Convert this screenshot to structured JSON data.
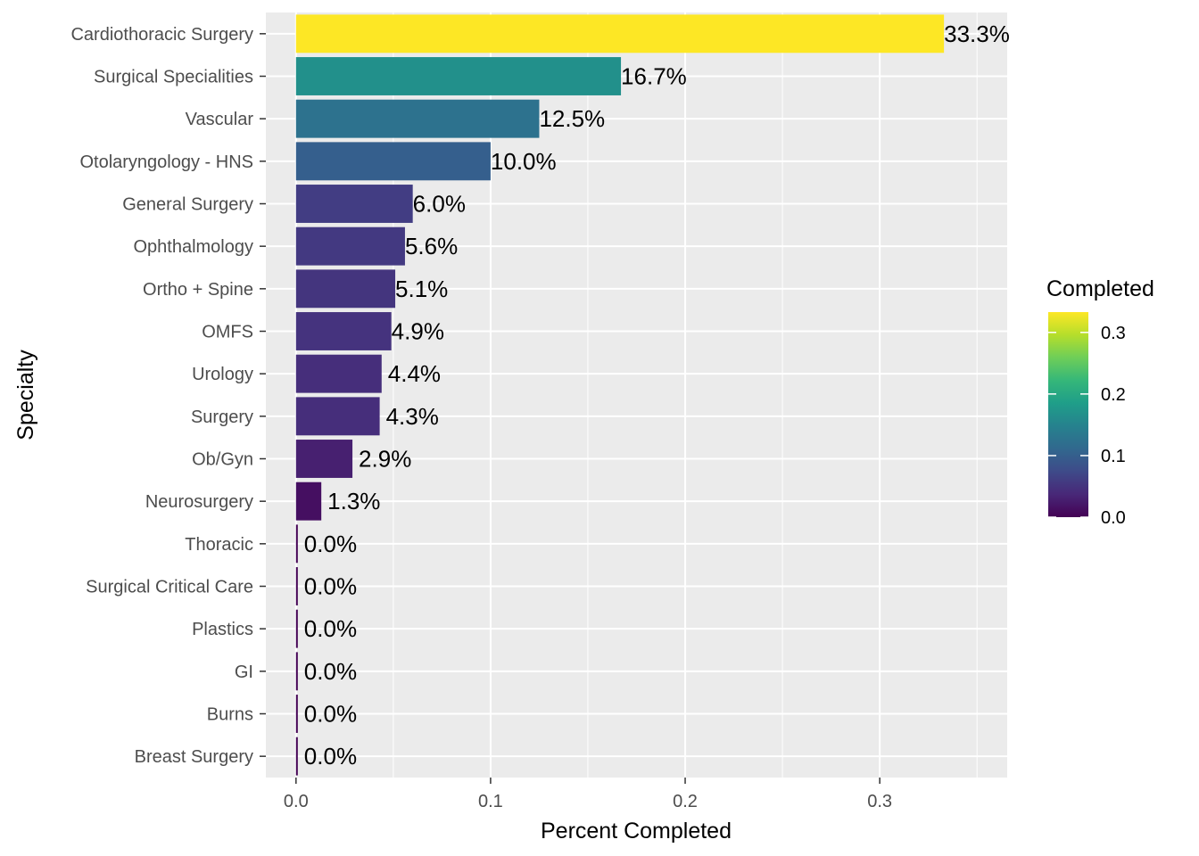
{
  "chart_data": {
    "type": "bar",
    "orientation": "horizontal",
    "categories": [
      "Cardiothoracic Surgery",
      "Surgical Specialities",
      "Vascular",
      "Otolaryngology - HNS",
      "General Surgery",
      "Ophthalmology",
      "Ortho + Spine",
      "OMFS",
      "Urology",
      "Surgery",
      "Ob/Gyn",
      "Neurosurgery",
      "Thoracic",
      "Surgical Critical Care",
      "Plastics",
      "GI",
      "Burns",
      "Breast Surgery"
    ],
    "values": [
      0.333,
      0.167,
      0.125,
      0.1,
      0.06,
      0.056,
      0.051,
      0.049,
      0.044,
      0.043,
      0.029,
      0.013,
      0.0,
      0.0,
      0.0,
      0.0,
      0.0,
      0.0
    ],
    "data_labels": [
      "33.3%",
      "16.7%",
      "12.5%",
      "10.0%",
      "6.0%",
      "5.6%",
      "5.1%",
      "4.9%",
      "4.4%",
      "4.3%",
      "2.9%",
      "1.3%",
      "0.0%",
      "0.0%",
      "0.0%",
      "0.0%",
      "0.0%",
      "0.0%"
    ],
    "xlabel": "Percent Completed",
    "ylabel": "Specialty",
    "xlim": [
      -0.0155,
      0.3655
    ],
    "x_ticks": [
      0.0,
      0.1,
      0.2,
      0.3
    ],
    "x_tick_labels": [
      "0.0",
      "0.1",
      "0.2",
      "0.3"
    ],
    "grid": true,
    "legend": {
      "title": "Completed",
      "placement": "right",
      "type": "colorbar",
      "range": [
        0.0,
        0.333
      ],
      "ticks": [
        0.0,
        0.1,
        0.2,
        0.3
      ],
      "tick_labels": [
        "0.0",
        "0.1",
        "0.2",
        "0.3"
      ]
    },
    "colors": {
      "panel_background": "#ebebeb",
      "grid_major": "#ffffff",
      "palette": [
        "#440154",
        "#482878",
        "#3e4a89",
        "#31688e",
        "#26828e",
        "#1f9e89",
        "#35b779",
        "#6ece58",
        "#b5de2b",
        "#fde725"
      ]
    }
  }
}
